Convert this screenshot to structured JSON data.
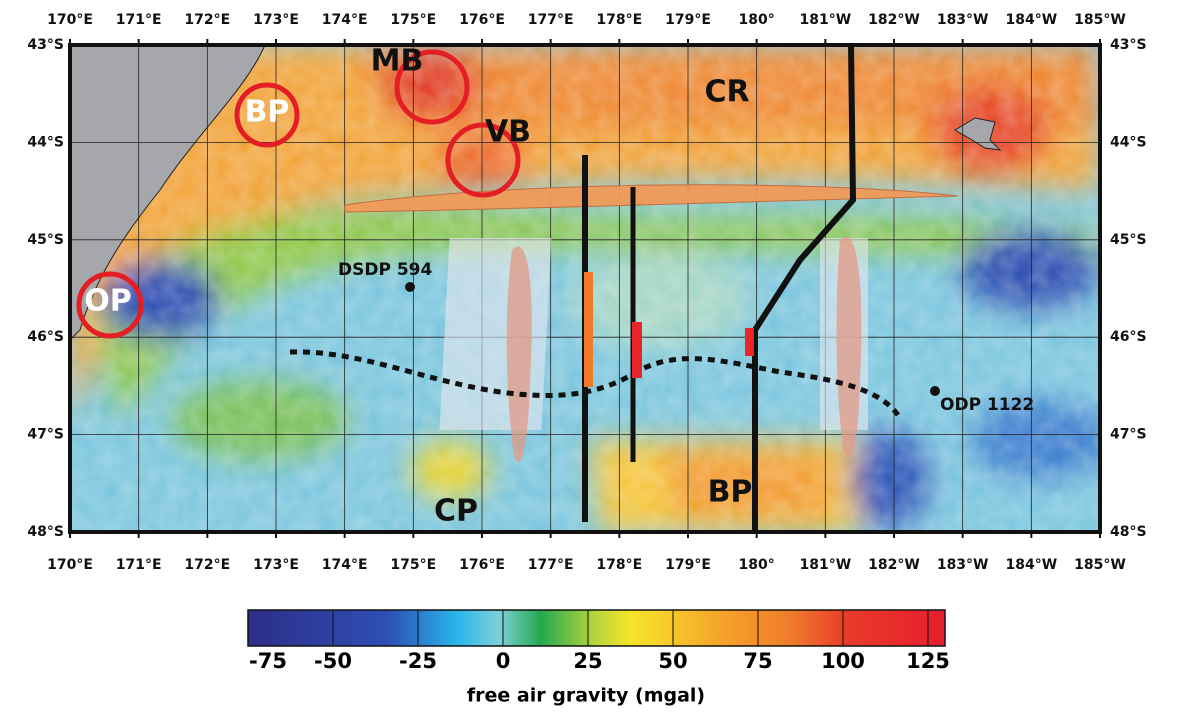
{
  "map": {
    "lon_labels": [
      "170°E",
      "171°E",
      "172°E",
      "173°E",
      "174°E",
      "175°E",
      "176°E",
      "177°E",
      "178°E",
      "179°E",
      "180°",
      "181°W",
      "182°W",
      "183°W",
      "184°W",
      "185°W"
    ],
    "lat_labels": [
      "43°S",
      "44°S",
      "45°S",
      "46°S",
      "47°S",
      "48°S"
    ],
    "annotations": {
      "mb": "MB",
      "bp_north": "BP",
      "vb": "VB",
      "cr": "CR",
      "op": "OP",
      "dsdp": "DSDP 594",
      "odp": "ODP 1122",
      "cp": "CP",
      "bp_south": "BP"
    }
  },
  "colorbar": {
    "ticks": [
      -75,
      -50,
      -25,
      0,
      25,
      50,
      75,
      100,
      125
    ],
    "title": "free air gravity (mgal)"
  }
}
